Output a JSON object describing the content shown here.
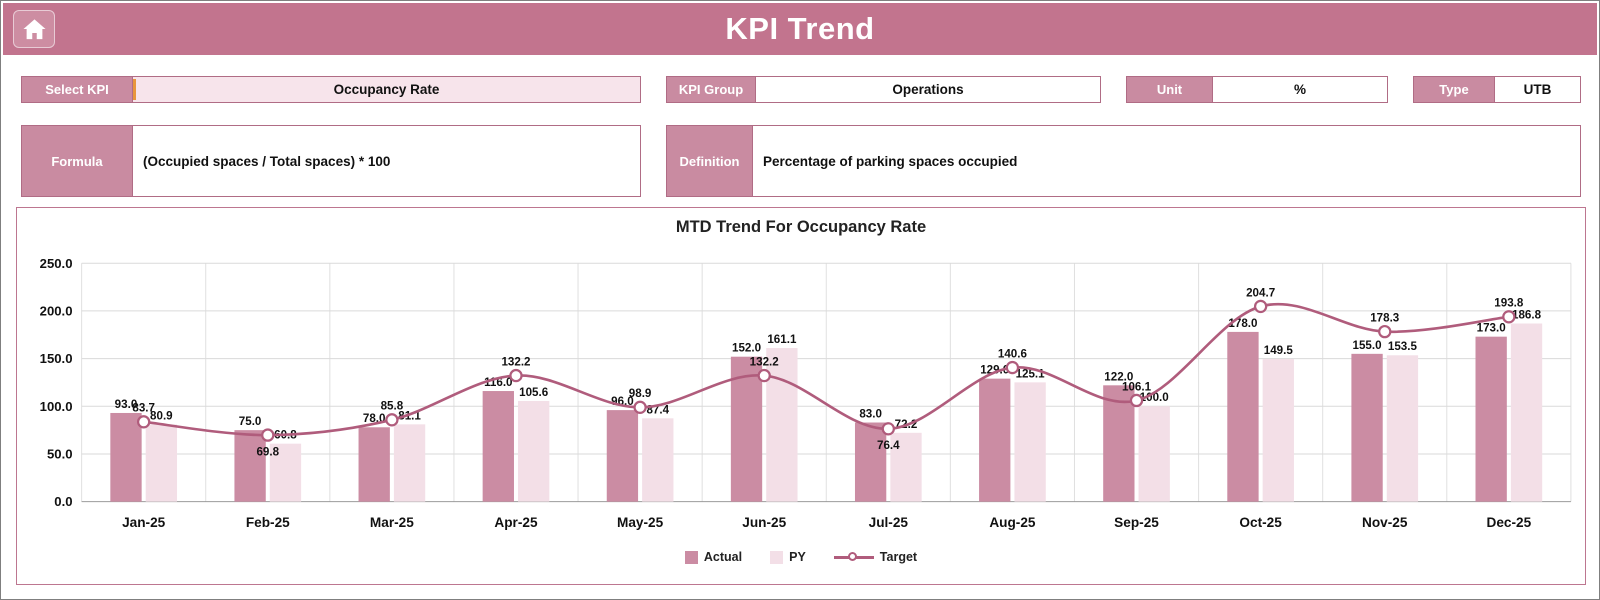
{
  "header": {
    "title": "KPI Trend"
  },
  "fields": {
    "select_kpi": {
      "label": "Select KPI",
      "value": "Occupancy Rate"
    },
    "kpi_group": {
      "label": "KPI Group",
      "value": "Operations"
    },
    "unit": {
      "label": "Unit",
      "value": "%"
    },
    "type": {
      "label": "Type",
      "value": "UTB"
    },
    "formula": {
      "label": "Formula",
      "value": "(Occupied spaces / Total spaces) * 100"
    },
    "definition": {
      "label": "Definition",
      "value": "Percentage of parking spaces occupied"
    }
  },
  "icons": {
    "home": "home-icon"
  },
  "colors": {
    "header_bg": "#c2748e",
    "label_bg": "#c98ba1",
    "border": "#b06c85",
    "value_bg_light": "#f7e4eb",
    "grid": "#dadada",
    "actual": "#cb8ca3",
    "py": "#f3dfe7",
    "target": "#b05c7c"
  },
  "chart_data": {
    "type": "bar",
    "subtype": "grouped-bars-with-line",
    "title": "MTD Trend For Occupancy Rate",
    "categories": [
      "Jan-25",
      "Feb-25",
      "Mar-25",
      "Apr-25",
      "May-25",
      "Jun-25",
      "Jul-25",
      "Aug-25",
      "Sep-25",
      "Oct-25",
      "Nov-25",
      "Dec-25"
    ],
    "series": [
      {
        "name": "Actual",
        "type": "bar",
        "color": "#cb8ca3",
        "values": [
          93.0,
          75.0,
          78.0,
          116.0,
          96.0,
          152.0,
          83.0,
          129.0,
          122.0,
          178.0,
          155.0,
          173.0
        ]
      },
      {
        "name": "PY",
        "type": "bar",
        "color": "#f3dfe7",
        "values": [
          80.9,
          60.8,
          81.1,
          105.6,
          87.4,
          161.1,
          72.2,
          125.1,
          100.0,
          149.5,
          153.5,
          186.8
        ]
      },
      {
        "name": "Target",
        "type": "line",
        "color": "#b05c7c",
        "values": [
          83.7,
          69.8,
          85.8,
          132.2,
          98.9,
          132.2,
          76.4,
          140.6,
          106.1,
          204.7,
          178.3,
          193.8
        ]
      }
    ],
    "ylim": [
      0,
      250
    ],
    "yticks": [
      "0.0",
      "50.0",
      "100.0",
      "150.0",
      "200.0",
      "250.0"
    ],
    "grid": true,
    "legend_position": "bottom"
  }
}
